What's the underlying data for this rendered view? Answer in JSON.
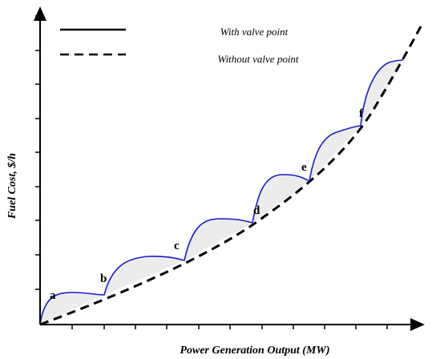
{
  "legend": {
    "items": [
      "With valve point",
      "Without valve point"
    ]
  },
  "axes": {
    "x_label": "Power Generation Output (MW)",
    "y_label": "Fuel Cost, $/h"
  },
  "points": [
    "a",
    "b",
    "c",
    "d",
    "e",
    "f"
  ]
}
